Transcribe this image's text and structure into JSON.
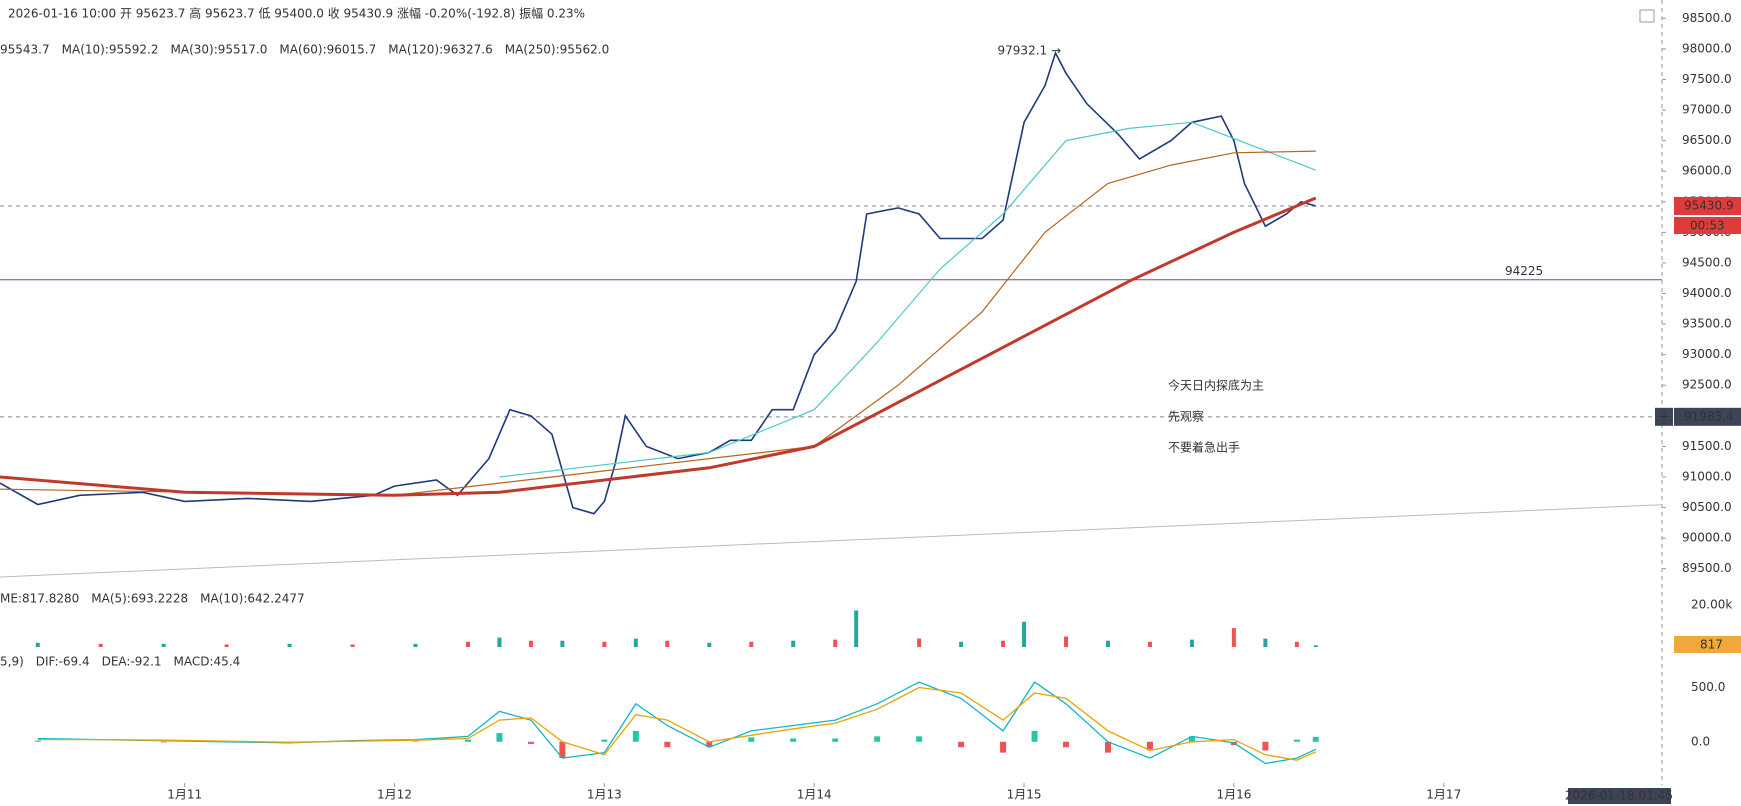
{
  "chart_data": {
    "type": "line",
    "header": "2026-01-16 10:00  开 95623.7  高 95623.7  低 95400.0  收 95430.9  涨幅 -0.20%(-192.8)  振幅 0.23%",
    "ma_legend": [
      {
        "text": "95543.7",
        "color": "#1f4e9c"
      },
      {
        "text": "MA(10):95592.2",
        "color": "#8b1a1a"
      },
      {
        "text": "MA(30):95517.0",
        "color": "#e07aa0"
      },
      {
        "text": "MA(60):96015.7",
        "color": "#4cc9c9"
      },
      {
        "text": "MA(120):96327.6",
        "color": "#b5651d"
      },
      {
        "text": "MA(250):95562.0",
        "color": "#c0392b"
      }
    ],
    "xlim": [
      10.12,
      18.04
    ],
    "xticks": [
      {
        "value": 11,
        "label": "1月11"
      },
      {
        "value": 12,
        "label": "1月12"
      },
      {
        "value": 13,
        "label": "1月13"
      },
      {
        "value": 14,
        "label": "1月14"
      },
      {
        "value": 15,
        "label": "1月15"
      },
      {
        "value": 16,
        "label": "1月16"
      },
      {
        "value": 17,
        "label": "1月17"
      }
    ],
    "ylim": [
      89250,
      98750
    ],
    "yticks": [
      {
        "value": 89500,
        "label": "89500.0"
      },
      {
        "value": 90000,
        "label": "90000.0"
      },
      {
        "value": 90500,
        "label": "90500.0"
      },
      {
        "value": 91000,
        "label": "91000.0"
      },
      {
        "value": 91500,
        "label": "91500.0"
      },
      {
        "value": 92000,
        "label": "92000.0"
      },
      {
        "value": 92500,
        "label": "92500.0"
      },
      {
        "value": 93000,
        "label": "93000.0"
      },
      {
        "value": 93500,
        "label": "93500.0"
      },
      {
        "value": 94000,
        "label": "94000.0"
      },
      {
        "value": 94500,
        "label": "94500.0"
      },
      {
        "value": 95000,
        "label": "95000.0"
      },
      {
        "value": 95500,
        "label": "95500.0"
      },
      {
        "value": 96000,
        "label": "96000.0"
      },
      {
        "value": 96500,
        "label": "96500.0"
      },
      {
        "value": 97000,
        "label": "97000.0"
      },
      {
        "value": 97500,
        "label": "97500.0"
      },
      {
        "value": 98000,
        "label": "98000.0"
      },
      {
        "value": 98500,
        "label": "98500.0"
      }
    ],
    "series": [
      {
        "name": "收",
        "color": "#1f3a7a",
        "x": [
          10.12,
          10.3,
          10.5,
          10.8,
          11.0,
          11.3,
          11.6,
          11.9,
          12.0,
          12.2,
          12.3,
          12.45,
          12.55,
          12.65,
          12.75,
          12.85,
          12.95,
          13.0,
          13.05,
          13.1,
          13.2,
          13.35,
          13.5,
          13.6,
          13.7,
          13.8,
          13.9,
          14.0,
          14.1,
          14.2,
          14.25,
          14.4,
          14.5,
          14.6,
          14.8,
          14.9,
          15.0,
          15.1,
          15.15,
          15.2,
          15.3,
          15.45,
          15.55,
          15.7,
          15.8,
          15.94,
          16.0,
          16.05,
          16.15,
          16.25,
          16.32,
          16.39
        ],
        "values": [
          90900,
          90550,
          90700,
          90750,
          90600,
          90650,
          90600,
          90700,
          90850,
          90950,
          90700,
          91300,
          92100,
          92000,
          91700,
          90500,
          90400,
          90600,
          91200,
          92000,
          91500,
          91300,
          91400,
          91600,
          91600,
          92100,
          92100,
          93000,
          93400,
          94200,
          95300,
          95400,
          95300,
          94900,
          94900,
          95200,
          96800,
          97400,
          97932.1,
          97600,
          97100,
          96600,
          96200,
          96500,
          96800,
          96900,
          96500,
          95800,
          95100,
          95300,
          95500,
          95430.9
        ]
      },
      {
        "name": "MA(60)",
        "color": "#4cc9c9",
        "x": [
          12.5,
          13.0,
          13.5,
          14.0,
          14.3,
          14.6,
          14.9,
          15.2,
          15.5,
          15.8,
          16.1,
          16.39
        ],
        "values": [
          91000,
          91200,
          91400,
          92100,
          93200,
          94400,
          95300,
          96500,
          96700,
          96800,
          96400,
          96015.7
        ]
      },
      {
        "name": "MA(120)",
        "color": "#b5651d",
        "x": [
          10.12,
          12.0,
          12.5,
          13.0,
          13.5,
          14.0,
          14.4,
          14.8,
          15.1,
          15.4,
          15.7,
          16.0,
          16.39
        ],
        "values": [
          90800,
          90700,
          90900,
          91100,
          91300,
          91500,
          92500,
          93700,
          95000,
          95800,
          96100,
          96300,
          96327.6
        ]
      },
      {
        "name": "MA(250)",
        "color": "#c0392b",
        "x": [
          10.12,
          11.0,
          12.0,
          12.5,
          13.0,
          13.5,
          14.0,
          14.5,
          15.0,
          15.5,
          16.0,
          16.39
        ],
        "values": [
          91000,
          90750,
          90700,
          90750,
          90950,
          91150,
          91500,
          92400,
          93300,
          94200,
          95000,
          95562
        ]
      }
    ],
    "peak_label": "97932.1 →",
    "level_line": {
      "value": 94225,
      "label": "94225",
      "color": "#7b3fb5"
    },
    "price_tag": {
      "value": 95430.9,
      "label": "95430.9",
      "countdown": "00:53"
    },
    "cursor_tag": {
      "value": 91983.4,
      "label": "91983.4"
    },
    "trendline": {
      "x": [
        10.12,
        18.04
      ],
      "values": [
        89365,
        90546
      ]
    },
    "annotation": [
      "今天日内探底为主",
      "先观察",
      "不要着急出手"
    ],
    "volume": {
      "legend": [
        "ME:817.8280",
        "MA(5):693.2228",
        "MA(10):642.2477"
      ],
      "ylim": [
        0,
        20000
      ],
      "yticks": [
        {
          "value": 20000,
          "label": "20.00k"
        }
      ],
      "tag": "817",
      "x": [
        10.3,
        10.6,
        10.9,
        11.2,
        11.5,
        11.8,
        12.1,
        12.35,
        12.5,
        12.65,
        12.8,
        13.0,
        13.15,
        13.3,
        13.5,
        13.7,
        13.9,
        14.1,
        14.2,
        14.5,
        14.7,
        14.9,
        15.0,
        15.2,
        15.4,
        15.6,
        15.8,
        16.0,
        16.15,
        16.3,
        16.39
      ],
      "values": [
        2000,
        1500,
        1500,
        1200,
        1500,
        1200,
        1500,
        2500,
        4500,
        3000,
        3000,
        2500,
        4000,
        3000,
        2000,
        2500,
        3000,
        3500,
        17400,
        4000,
        2500,
        3000,
        12000,
        5000,
        3000,
        2500,
        3500,
        9000,
        4000,
        2500,
        817.8
      ]
    },
    "macd": {
      "legend": [
        "5,9)",
        "DIF:-69.4",
        "DEA:-92.1",
        "MACD:45.4"
      ],
      "ylim": [
        -380,
        800
      ],
      "yticks": [
        {
          "value": 0,
          "label": "0.0"
        },
        {
          "value": 500,
          "label": "500.0"
        }
      ],
      "x": [
        10.3,
        10.6,
        10.9,
        11.2,
        11.5,
        11.8,
        12.1,
        12.35,
        12.5,
        12.65,
        12.8,
        13.0,
        13.15,
        13.3,
        13.5,
        13.7,
        13.9,
        14.1,
        14.3,
        14.5,
        14.7,
        14.9,
        15.05,
        15.2,
        15.4,
        15.6,
        15.8,
        16.0,
        16.15,
        16.3,
        16.39
      ],
      "hist": [
        10,
        0,
        -5,
        -5,
        -5,
        5,
        5,
        20,
        80,
        -20,
        -150,
        20,
        100,
        -50,
        -50,
        40,
        30,
        30,
        50,
        50,
        -50,
        -100,
        100,
        -50,
        -100,
        -70,
        50,
        -30,
        -80,
        20,
        45.4
      ],
      "dif": [
        30,
        20,
        10,
        0,
        -10,
        10,
        20,
        50,
        280,
        200,
        -150,
        -100,
        350,
        150,
        -50,
        100,
        150,
        200,
        350,
        550,
        400,
        100,
        550,
        350,
        0,
        -150,
        50,
        -10,
        -200,
        -150,
        -69.4
      ],
      "dea": [
        20,
        20,
        15,
        5,
        -5,
        5,
        15,
        30,
        200,
        220,
        0,
        -120,
        250,
        200,
        0,
        60,
        120,
        170,
        300,
        500,
        450,
        200,
        450,
        400,
        100,
        -80,
        0,
        20,
        -120,
        -170,
        -92.1
      ]
    },
    "time_tag": "2026-01-18 01:45"
  }
}
